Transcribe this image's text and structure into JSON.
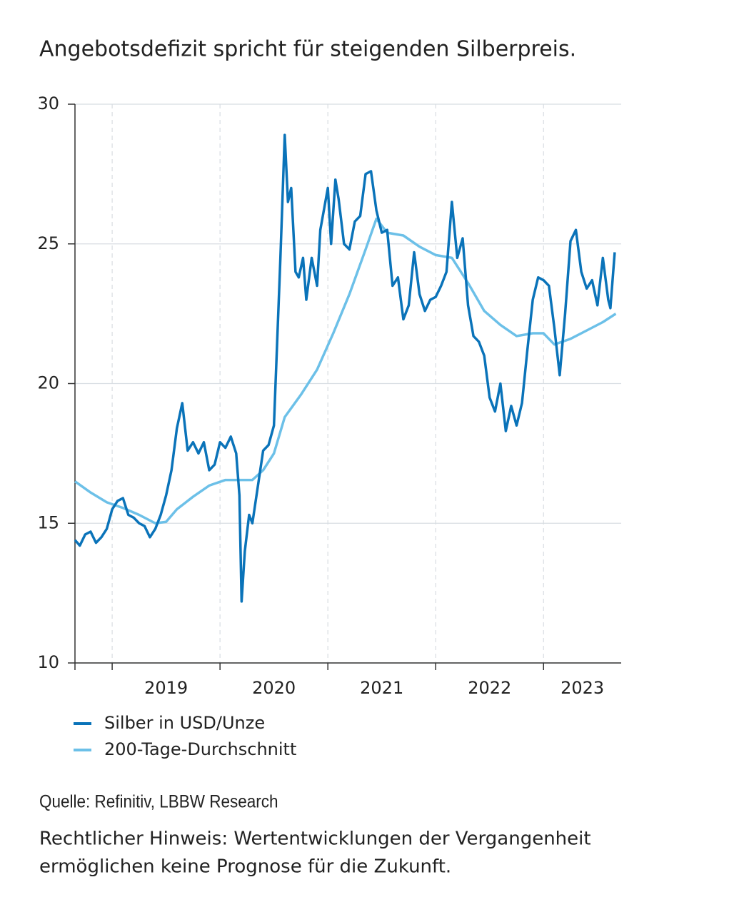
{
  "chart_data": {
    "type": "line",
    "title": "Angebotsdefizit spricht für steigenden Silberpreis.",
    "source": "Quelle: Refinitiv, LBBW Research",
    "note": [
      "Rechtlicher Hinweis: Wertentwicklungen der Vergangenheit",
      "ermöglichen keine Prognose für die Zukunft."
    ],
    "xlim": [
      2018.655,
      2023.72
    ],
    "xticks": [
      2019,
      2020,
      2021,
      2022,
      2023
    ],
    "ylim": [
      10,
      30
    ],
    "yticks": [
      10,
      15,
      20,
      25,
      30
    ],
    "grid": true,
    "series": [
      {
        "name": "Silber in USD/Unze",
        "color": "#0a73b9",
        "x": [
          2018.655,
          2018.7,
          2018.75,
          2018.8,
          2018.85,
          2018.9,
          2018.95,
          2019.0,
          2019.05,
          2019.1,
          2019.15,
          2019.2,
          2019.25,
          2019.3,
          2019.35,
          2019.4,
          2019.45,
          2019.5,
          2019.55,
          2019.6,
          2019.65,
          2019.7,
          2019.75,
          2019.8,
          2019.85,
          2019.9,
          2019.95,
          2020.0,
          2020.05,
          2020.1,
          2020.15,
          2020.18,
          2020.2,
          2020.23,
          2020.27,
          2020.3,
          2020.35,
          2020.4,
          2020.45,
          2020.5,
          2020.53,
          2020.56,
          2020.6,
          2020.63,
          2020.66,
          2020.7,
          2020.73,
          2020.77,
          2020.8,
          2020.85,
          2020.9,
          2020.93,
          2021.0,
          2021.03,
          2021.07,
          2021.1,
          2021.15,
          2021.2,
          2021.25,
          2021.3,
          2021.35,
          2021.4,
          2021.45,
          2021.5,
          2021.55,
          2021.6,
          2021.65,
          2021.7,
          2021.75,
          2021.8,
          2021.85,
          2021.9,
          2021.95,
          2022.0,
          2022.05,
          2022.1,
          2022.15,
          2022.2,
          2022.25,
          2022.3,
          2022.35,
          2022.4,
          2022.45,
          2022.5,
          2022.55,
          2022.6,
          2022.65,
          2022.7,
          2022.75,
          2022.8,
          2022.85,
          2022.9,
          2022.95,
          2023.0,
          2023.05,
          2023.1,
          2023.15,
          2023.2,
          2023.25,
          2023.3,
          2023.35,
          2023.4,
          2023.45,
          2023.5,
          2023.55,
          2023.6,
          2023.62,
          2023.66
        ],
        "values": [
          14.4,
          14.2,
          14.6,
          14.7,
          14.3,
          14.5,
          14.8,
          15.5,
          15.8,
          15.9,
          15.3,
          15.2,
          15.0,
          14.9,
          14.5,
          14.8,
          15.3,
          16.0,
          16.9,
          18.4,
          19.3,
          17.6,
          17.9,
          17.5,
          17.9,
          16.9,
          17.1,
          17.9,
          17.7,
          18.1,
          17.5,
          16.0,
          12.2,
          14.0,
          15.3,
          15.0,
          16.3,
          17.6,
          17.8,
          18.5,
          21.5,
          24.5,
          28.9,
          26.5,
          27.0,
          24.0,
          23.8,
          24.5,
          23.0,
          24.5,
          23.5,
          25.5,
          27.0,
          25.0,
          27.3,
          26.6,
          25.0,
          24.8,
          25.8,
          26.0,
          27.5,
          27.6,
          26.2,
          25.4,
          25.5,
          23.5,
          23.8,
          22.3,
          22.8,
          24.7,
          23.2,
          22.6,
          23.0,
          23.1,
          23.5,
          24.0,
          26.5,
          24.5,
          25.2,
          22.8,
          21.7,
          21.5,
          21.0,
          19.5,
          19.0,
          20.0,
          18.3,
          19.2,
          18.5,
          19.3,
          21.2,
          23.0,
          23.8,
          23.7,
          23.5,
          22.0,
          20.3,
          22.5,
          25.1,
          25.5,
          24.0,
          23.4,
          23.7,
          22.8,
          24.5,
          23.0,
          22.7,
          24.7
        ]
      },
      {
        "name": "200-Tage-Durchschnitt",
        "color": "#6cc0e8",
        "x": [
          2018.655,
          2018.8,
          2018.95,
          2019.1,
          2019.25,
          2019.4,
          2019.5,
          2019.6,
          2019.75,
          2019.9,
          2020.05,
          2020.2,
          2020.3,
          2020.4,
          2020.5,
          2020.6,
          2020.75,
          2020.9,
          2021.05,
          2021.2,
          2021.35,
          2021.45,
          2021.55,
          2021.7,
          2021.85,
          2022.0,
          2022.15,
          2022.3,
          2022.45,
          2022.6,
          2022.75,
          2022.9,
          2023.0,
          2023.1,
          2023.25,
          2023.4,
          2023.55,
          2023.67
        ],
        "values": [
          16.5,
          16.1,
          15.75,
          15.55,
          15.3,
          15.0,
          15.05,
          15.5,
          15.95,
          16.35,
          16.55,
          16.55,
          16.55,
          16.9,
          17.5,
          18.8,
          19.6,
          20.5,
          21.8,
          23.2,
          24.8,
          25.9,
          25.4,
          25.3,
          24.9,
          24.6,
          24.5,
          23.6,
          22.6,
          22.1,
          21.7,
          21.8,
          21.8,
          21.4,
          21.6,
          21.9,
          22.2,
          22.5
        ]
      }
    ]
  }
}
